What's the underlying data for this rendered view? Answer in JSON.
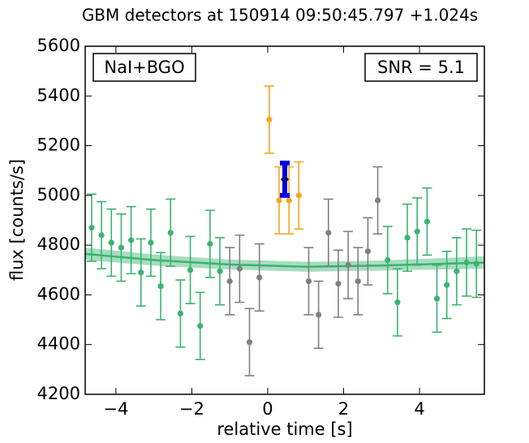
{
  "chart_data": {
    "type": "scatter",
    "title": "GBM detectors at 150914 09:50:45.797 +1.024s",
    "x_label": "relative time [s]",
    "y_label": "flux [counts/s]",
    "annotations": [
      "NaI+BGO",
      "SNR = 5.1"
    ],
    "xlim": [
      -4.81,
      5.71
    ],
    "ylim": [
      4200,
      5600
    ],
    "xticks": [
      {
        "value": -4,
        "label": "−4"
      },
      {
        "value": -2,
        "label": "−2"
      },
      0,
      2,
      4
    ],
    "yticks": [
      4200,
      4400,
      4600,
      4800,
      5000,
      5200,
      5400,
      5600
    ],
    "fit": {
      "color": "#3cb371",
      "x": [
        -4.81,
        -3,
        -1,
        1,
        3,
        5.71
      ],
      "values": [
        4765,
        4740,
        4722,
        4713,
        4718,
        4730
      ],
      "band": [
        25,
        22,
        20,
        20,
        20,
        25
      ]
    },
    "series": [
      {
        "color": "#3cb371",
        "marker": "circle",
        "x": [
          -4.64,
          -4.38,
          -4.12,
          -3.86,
          -3.6,
          -3.34,
          -3.08,
          -2.82,
          -2.56,
          -2.3,
          -2.04,
          -1.78,
          -1.52,
          -1.26
        ],
        "values": [
          4870,
          4840,
          4810,
          4790,
          4820,
          4690,
          4810,
          4635,
          4850,
          4525,
          4700,
          4475,
          4805,
          4695
        ],
        "errors": [
          135,
          135,
          135,
          135,
          135,
          135,
          135,
          135,
          135,
          135,
          135,
          135,
          135,
          135
        ]
      },
      {
        "color": "#808080",
        "marker": "circle",
        "x": [
          -1.0,
          -0.74,
          -0.48,
          -0.22
        ],
        "values": [
          4655,
          4705,
          4410,
          4670
        ],
        "errors": [
          135,
          135,
          135,
          135
        ]
      },
      {
        "color": "#f5a623",
        "marker": "circle",
        "x": [
          0.04,
          0.3,
          0.56,
          0.82
        ],
        "values": [
          5305,
          4980,
          4980,
          5000
        ],
        "errors": [
          135,
          135,
          135,
          135
        ]
      },
      {
        "color": "#808080",
        "marker": "circle",
        "x": [
          1.08,
          1.34,
          1.6,
          1.86,
          2.12,
          2.38,
          2.64,
          2.9
        ],
        "values": [
          4655,
          4520,
          4850,
          4645,
          4720,
          4655,
          4775,
          4980
        ],
        "errors": [
          135,
          135,
          135,
          135,
          135,
          135,
          135,
          135
        ]
      },
      {
        "color": "#3cb371",
        "marker": "circle",
        "x": [
          3.16,
          3.42,
          3.68,
          3.94,
          4.2,
          4.46,
          4.72,
          4.98,
          5.24,
          5.5
        ],
        "values": [
          4740,
          4570,
          4830,
          4855,
          4895,
          4585,
          4640,
          4695,
          4730,
          4725
        ],
        "errors": [
          135,
          135,
          135,
          135,
          135,
          135,
          135,
          135,
          135,
          135
        ]
      },
      {
        "color": "#0000e0",
        "marker": "diamond",
        "x": [
          0.45
        ],
        "values": [
          5065
        ],
        "errors": [
          65
        ]
      }
    ]
  }
}
